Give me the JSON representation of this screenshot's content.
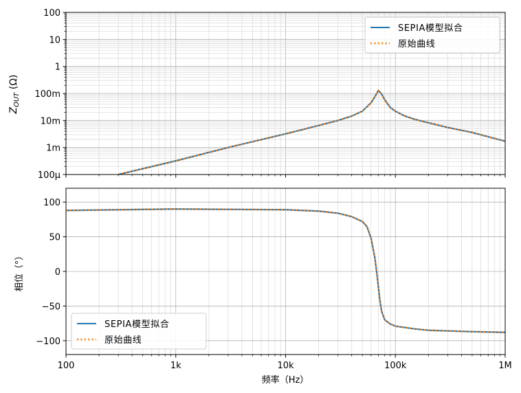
{
  "figure": {
    "xlabel": "频率（Hz）"
  },
  "chart_data": [
    {
      "type": "line",
      "scale": {
        "x": "log",
        "y": "log"
      },
      "ylabel_main": "Z",
      "ylabel_sub": "OUT",
      "ylabel_unit": "(Ω)",
      "xlim": [
        100,
        1000000
      ],
      "ylim": [
        0.0001,
        100
      ],
      "grid": true,
      "legend_placement": "top-right",
      "x_tick_values": [
        100,
        1000,
        10000,
        100000,
        1000000
      ],
      "y_tick_values": [
        0.0001,
        0.001,
        0.01,
        0.1,
        1,
        10,
        100
      ],
      "y_tick_labels": [
        "100μ",
        "1m",
        "10m",
        "100m",
        "1",
        "10",
        "100"
      ],
      "series": [
        {
          "name": "SEPIA模型拟合",
          "color": "#1f77b4",
          "style": "solid",
          "x": [
            300,
            1000,
            3000,
            10000,
            20000,
            30000,
            40000,
            50000,
            60000,
            65000,
            70000,
            75000,
            80000,
            90000,
            100000,
            120000,
            150000,
            200000,
            300000,
            500000,
            1000000
          ],
          "y": [
            0.0001,
            0.00032,
            0.001,
            0.0032,
            0.0065,
            0.01,
            0.0145,
            0.022,
            0.045,
            0.075,
            0.13,
            0.095,
            0.058,
            0.03,
            0.022,
            0.015,
            0.011,
            0.0082,
            0.0055,
            0.0036,
            0.0017
          ]
        },
        {
          "name": "原始曲线",
          "color": "#ff7f0e",
          "style": "dotted",
          "x": [
            300,
            1000,
            3000,
            10000,
            20000,
            30000,
            40000,
            50000,
            60000,
            65000,
            70000,
            75000,
            80000,
            90000,
            100000,
            120000,
            150000,
            200000,
            300000,
            500000,
            1000000
          ],
          "y": [
            0.0001,
            0.00032,
            0.001,
            0.0032,
            0.0065,
            0.01,
            0.0145,
            0.022,
            0.045,
            0.075,
            0.13,
            0.095,
            0.058,
            0.03,
            0.022,
            0.015,
            0.011,
            0.0082,
            0.0055,
            0.0036,
            0.0017
          ]
        }
      ]
    },
    {
      "type": "line",
      "scale": {
        "x": "log",
        "y": "linear"
      },
      "ylabel": "相位（°）",
      "xlim": [
        100,
        1000000
      ],
      "ylim": [
        -120,
        120
      ],
      "grid": true,
      "legend_placement": "bottom-left",
      "x_tick_values": [
        100,
        1000,
        10000,
        100000,
        1000000
      ],
      "x_tick_labels": [
        "100",
        "1k",
        "10k",
        "100k",
        "1M"
      ],
      "y_tick_values": [
        100,
        50,
        0,
        -50,
        -100
      ],
      "y_tick_labels": [
        "100",
        "50",
        "0",
        "−50",
        "−100"
      ],
      "series": [
        {
          "name": "SEPIA模型拟合",
          "color": "#1f77b4",
          "style": "solid",
          "x": [
            100,
            1000,
            10000,
            20000,
            30000,
            40000,
            50000,
            55000,
            60000,
            65000,
            68000,
            70000,
            72000,
            75000,
            80000,
            90000,
            100000,
            150000,
            200000,
            500000,
            1000000
          ],
          "y": [
            88,
            90,
            89,
            87,
            84,
            79,
            72,
            65,
            48,
            20,
            -5,
            -22,
            -40,
            -58,
            -70,
            -76,
            -79,
            -83,
            -85,
            -87,
            -88
          ]
        },
        {
          "name": "原始曲线",
          "color": "#ff7f0e",
          "style": "dotted",
          "x": [
            100,
            1000,
            10000,
            20000,
            30000,
            40000,
            50000,
            55000,
            60000,
            65000,
            68000,
            70000,
            72000,
            75000,
            80000,
            90000,
            100000,
            150000,
            200000,
            500000,
            1000000
          ],
          "y": [
            88,
            90,
            89,
            87,
            84,
            79,
            72,
            65,
            48,
            20,
            -5,
            -22,
            -40,
            -58,
            -70,
            -76,
            -79,
            -83,
            -85,
            -87,
            -88
          ]
        }
      ]
    }
  ]
}
